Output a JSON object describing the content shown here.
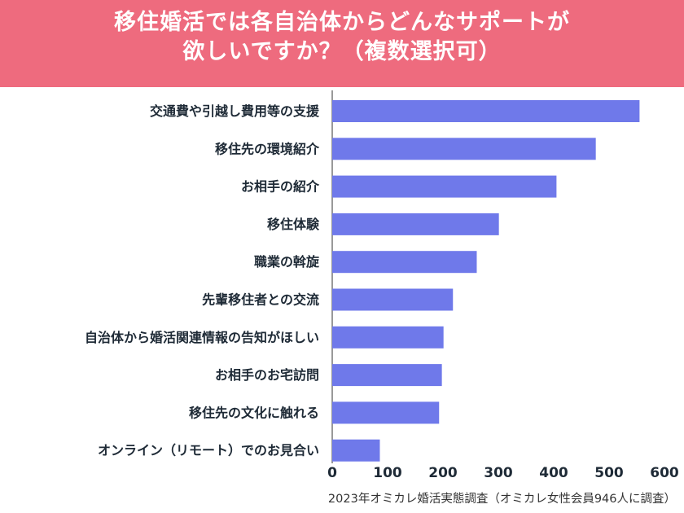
{
  "title": {
    "line1": "移住婚活では各自治体からどんなサポートが",
    "line2": "欲しいですか？（複数選択可）"
  },
  "footer": {
    "source": "2023年オミカレ婚活実態調査（オミカレ女性会員946人に調査）"
  },
  "colors": {
    "header_bg": "#ee6b7e",
    "bar": "#6f79ea",
    "axis": "#333333"
  },
  "chart_data": {
    "type": "bar",
    "orientation": "horizontal",
    "categories": [
      "交通費や引越し費用等の支援",
      "移住先の環境紹介",
      "お相手の紹介",
      "移住体験",
      "職業の斡旋",
      "先輩移住者との交流",
      "自治体から婚活関連情報の告知がほしい",
      "お相手のお宅訪問",
      "移住先の文化に触れる",
      "オンライン（リモート）でのお見合い"
    ],
    "values": [
      555,
      476,
      405,
      301,
      261,
      218,
      201,
      198,
      193,
      86
    ],
    "xlim": [
      0,
      600
    ],
    "xticks": [
      0,
      100,
      200,
      300,
      400,
      500,
      600
    ],
    "grid": false,
    "legend": "none"
  }
}
